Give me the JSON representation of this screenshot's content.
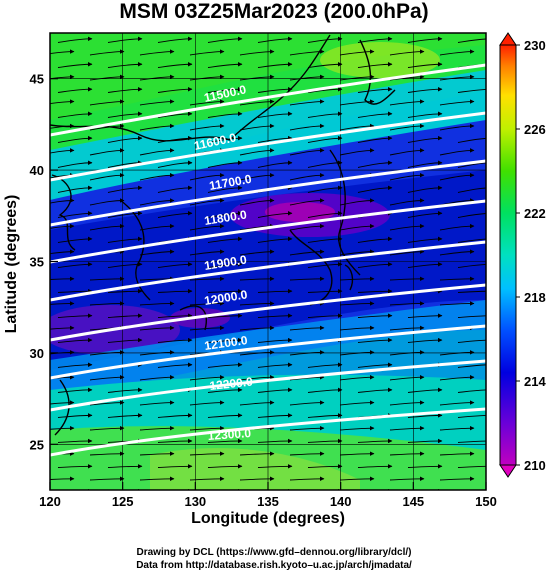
{
  "title": "MSM 03Z25Mar2023 (200.0hPa)",
  "axes": {
    "xlabel": "Longitude (degrees)",
    "ylabel": "Latitude  (degrees)",
    "x_ticks": [
      "120",
      "125",
      "130",
      "135",
      "140",
      "145",
      "150"
    ],
    "y_ticks": [
      "45",
      "40",
      "35",
      "30",
      "25"
    ]
  },
  "colorbar": {
    "ticks": [
      "230",
      "226",
      "222",
      "218",
      "214",
      "210"
    ],
    "range": [
      210,
      230
    ]
  },
  "contours": [
    {
      "label": "11500.0"
    },
    {
      "label": "11600.0"
    },
    {
      "label": "11700.0"
    },
    {
      "label": "11800.0"
    },
    {
      "label": "11900.0"
    },
    {
      "label": "12000.0"
    },
    {
      "label": "12100.0"
    },
    {
      "label": "12200.0"
    },
    {
      "label": "12300.0"
    }
  ],
  "credits": {
    "line1": "Drawing by DCL (https://www.gfd–dennou.org/library/dcl/)",
    "line2": "Data from http://database.rish.kyoto–u.ac.jp/arch/jmadata/"
  },
  "chart_data": {
    "type": "heatmap",
    "title": "MSM 03Z25Mar2023 (200.0hPa)",
    "xlabel": "Longitude (degrees)",
    "ylabel": "Latitude  (degrees)",
    "xlim": [
      120,
      150
    ],
    "ylim": [
      22.5,
      47.5
    ],
    "color_range": [
      210,
      230
    ],
    "contour_values": [
      11500,
      11600,
      11700,
      11800,
      11900,
      12000,
      12100,
      12200,
      12300
    ],
    "grid": true
  }
}
